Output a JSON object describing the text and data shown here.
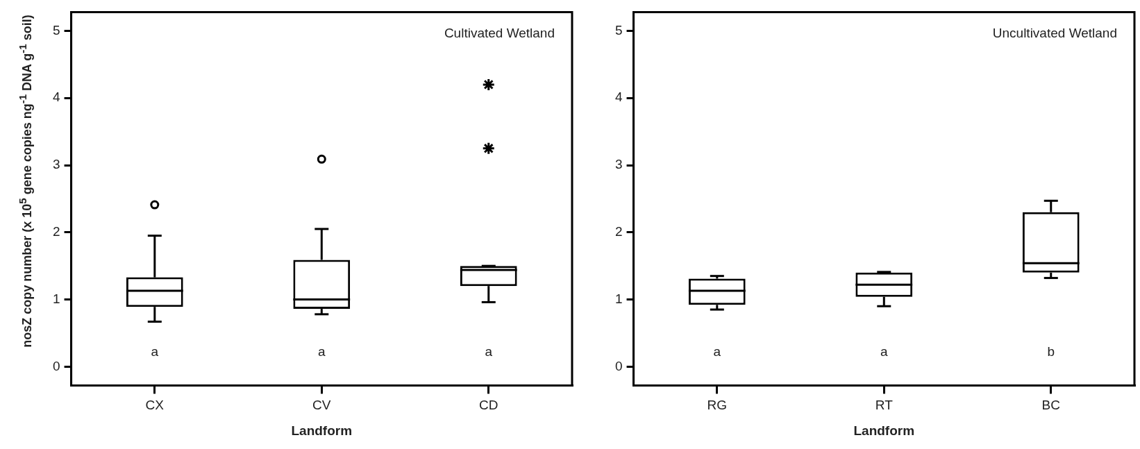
{
  "chart_data": [
    {
      "type": "box",
      "color": "#000000",
      "categories": [
        "CX",
        "CV",
        "CD"
      ],
      "xlabel": "Landform",
      "ylabel": "nosZ copy number (x 10$^{5}$ gene copies ng$^{-1}$ DNA g$^{-1}$ soil)",
      "ylim": [
        -0.28,
        5.28
      ],
      "yticks": [
        0,
        1,
        2,
        3,
        4,
        5
      ],
      "boxes": [
        {
          "low": 0.67,
          "q1": 0.89,
          "median": 1.13,
          "q3": 1.33,
          "high": 1.95,
          "outliers": [
            2.41
          ]
        },
        {
          "low": 0.78,
          "q1": 0.86,
          "median": 1.0,
          "q3": 1.59,
          "high": 2.05,
          "outliers": [
            3.09
          ]
        },
        {
          "low": 0.96,
          "q1": 1.2,
          "median": 1.44,
          "q3": 1.5,
          "high": 1.5
        }
      ],
      "series": [
        {
          "type": "scatter",
          "x": [
            "CD",
            "CD"
          ],
          "values": [
            3.25,
            4.2
          ],
          "color": "#000000",
          "marker": "cross"
        }
      ],
      "annotations": [
        "Cultivated Wetland",
        "a",
        "a",
        "a"
      ]
    },
    {
      "type": "box",
      "color": "#000000",
      "categories": [
        "RG",
        "RT",
        "BC"
      ],
      "xlabel": "Landform",
      "ylim": [
        -0.28,
        5.28
      ],
      "yticks": [
        0,
        1,
        2,
        3,
        4,
        5
      ],
      "boxes": [
        {
          "low": 0.85,
          "q1": 0.92,
          "median": 1.13,
          "q3": 1.31,
          "high": 1.35
        },
        {
          "low": 0.9,
          "q1": 1.04,
          "median": 1.22,
          "q3": 1.4,
          "high": 1.41
        },
        {
          "low": 1.32,
          "q1": 1.4,
          "median": 1.54,
          "q3": 2.3,
          "high": 2.47
        }
      ],
      "annotations": [
        "Uncultivated Wetland",
        "a",
        "a",
        "b"
      ]
    }
  ]
}
